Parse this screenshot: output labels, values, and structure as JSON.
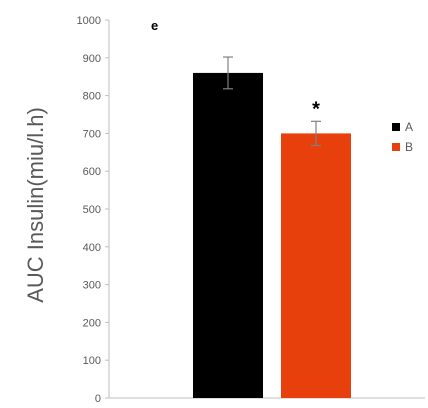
{
  "chart_data": {
    "type": "bar",
    "panel_label": "e",
    "ylabel": "AUC Insulin(miu/l.h)",
    "xlabel": "",
    "ylim": [
      0,
      1000
    ],
    "yticks": [
      0,
      100,
      200,
      300,
      400,
      500,
      600,
      700,
      800,
      900,
      1000
    ],
    "gridlines": false,
    "legend_position": "right",
    "series": [
      {
        "name": "A",
        "value": 860,
        "error": 42,
        "color": "#000000",
        "annotation": ""
      },
      {
        "name": "B",
        "value": 700,
        "error": 32,
        "color": "#e8400c",
        "annotation": "*"
      }
    ]
  }
}
